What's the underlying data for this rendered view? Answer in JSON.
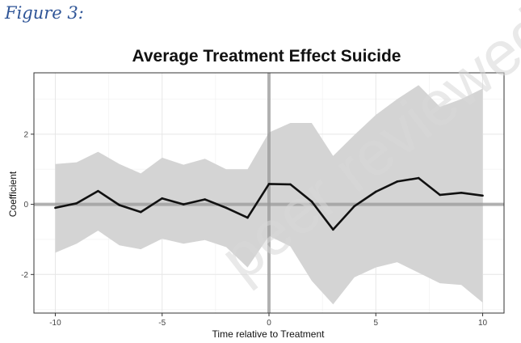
{
  "figure_label": "Figure 3:",
  "watermark_text": "peer reviewed",
  "chart_data": {
    "type": "line",
    "title": "Average Treatment Effect Suicide",
    "xlabel": "Time relative to Treatment",
    "ylabel": "Coefficient",
    "xlim": [
      -11,
      11
    ],
    "ylim": [
      -3.1,
      3.75
    ],
    "xticks": [
      -10,
      -5,
      0,
      5,
      10
    ],
    "yticks": [
      -2,
      0,
      2
    ],
    "reference_lines": {
      "x": 0,
      "y": 0
    },
    "grid": true,
    "series": [
      {
        "name": "Coefficient",
        "x": [
          -10,
          -9,
          -8,
          -7,
          -6,
          -5,
          -4,
          -3,
          -2,
          -1,
          0,
          1,
          2,
          3,
          4,
          5,
          6,
          7,
          8,
          9,
          10
        ],
        "values": [
          -0.1,
          0.03,
          0.38,
          -0.02,
          -0.22,
          0.17,
          0.0,
          0.14,
          -0.1,
          -0.38,
          0.58,
          0.57,
          0.08,
          -0.72,
          -0.05,
          0.36,
          0.65,
          0.75,
          0.27,
          0.33,
          0.25
        ],
        "ci_upper": [
          1.15,
          1.2,
          1.5,
          1.15,
          0.88,
          1.33,
          1.13,
          1.3,
          1.0,
          1.0,
          2.05,
          2.32,
          2.32,
          1.38,
          1.98,
          2.55,
          3.0,
          3.4,
          2.78,
          3.0,
          3.3
        ],
        "ci_lower": [
          -1.38,
          -1.12,
          -0.75,
          -1.17,
          -1.28,
          -0.98,
          -1.12,
          -1.02,
          -1.22,
          -1.8,
          -0.9,
          -1.2,
          -2.18,
          -2.85,
          -2.08,
          -1.8,
          -1.65,
          -1.95,
          -2.25,
          -2.3,
          -2.8
        ]
      }
    ]
  }
}
